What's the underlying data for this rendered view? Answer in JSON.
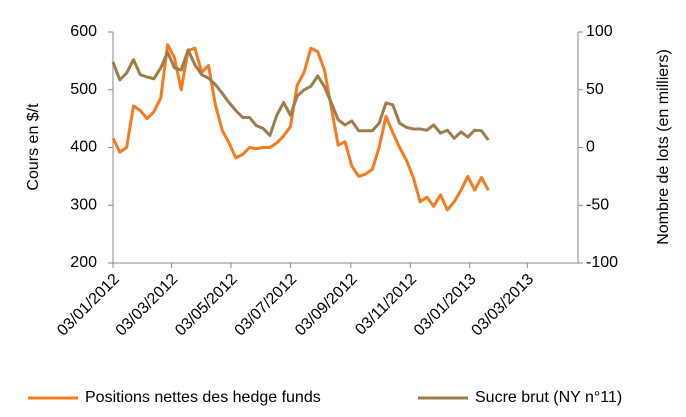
{
  "chart_data": {
    "type": "line",
    "y_label": "Cours en $/t",
    "y2_label": "Nombre de lots (en milliers)",
    "x": [
      "03/01/2012",
      "10/01/2012",
      "17/01/2012",
      "24/01/2012",
      "31/01/2012",
      "07/02/2012",
      "14/02/2012",
      "21/02/2012",
      "28/02/2012",
      "06/03/2012",
      "13/03/2012",
      "20/03/2012",
      "27/03/2012",
      "03/04/2012",
      "10/04/2012",
      "17/04/2012",
      "24/04/2012",
      "01/05/2012",
      "08/05/2012",
      "15/05/2012",
      "22/05/2012",
      "29/05/2012",
      "05/06/2012",
      "12/06/2012",
      "19/06/2012",
      "26/06/2012",
      "03/07/2012",
      "10/07/2012",
      "17/07/2012",
      "24/07/2012",
      "31/07/2012",
      "07/08/2012",
      "14/08/2012",
      "21/08/2012",
      "28/08/2012",
      "04/09/2012",
      "11/09/2012",
      "18/09/2012",
      "25/09/2012",
      "02/10/2012",
      "09/10/2012",
      "16/10/2012",
      "23/10/2012",
      "30/10/2012",
      "06/11/2012",
      "13/11/2012",
      "20/11/2012",
      "27/11/2012",
      "04/12/2012",
      "11/12/2012",
      "18/12/2012",
      "25/12/2012",
      "01/01/2013",
      "08/01/2013",
      "15/01/2013",
      "22/01/2013"
    ],
    "xlim": [
      "03/01/2012",
      "24/04/2013"
    ],
    "xticks": [
      "03/01/2012",
      "03/03/2012",
      "03/05/2012",
      "03/07/2012",
      "03/09/2012",
      "03/11/2012",
      "03/01/2013",
      "03/03/2013"
    ],
    "ylim": [
      200,
      600
    ],
    "yticks": [
      200,
      300,
      400,
      500,
      600
    ],
    "y2lim": [
      -100,
      100
    ],
    "y2ticks": [
      -100,
      -50,
      0,
      50,
      100
    ],
    "legend": "bottom",
    "series": [
      {
        "name": "Positions nettes des hedge funds",
        "color": "#f47b20",
        "axis": "y2",
        "values": [
          8,
          -4,
          0,
          36,
          32,
          25,
          31,
          43,
          89,
          78,
          50,
          84,
          86,
          65,
          71,
          37,
          15,
          4,
          -9,
          -6,
          0,
          -1,
          0,
          0,
          4,
          10,
          18,
          54,
          65,
          86,
          83,
          67,
          34,
          2,
          5,
          -16,
          -25,
          -23,
          -19,
          0,
          27,
          13,
          0,
          -11,
          -26,
          -47,
          -43,
          -51,
          -41,
          -54,
          -47,
          -37,
          -25,
          -37,
          -26,
          -37
        ]
      },
      {
        "name": "Sucre brut (NY n°11)",
        "color": "#9c7d4b",
        "values": [
          548,
          517,
          529,
          552,
          526,
          522,
          519,
          538,
          565,
          538,
          534,
          569,
          543,
          526,
          520,
          509,
          494,
          478,
          464,
          452,
          452,
          438,
          433,
          421,
          456,
          478,
          456,
          489,
          500,
          506,
          524,
          505,
          477,
          448,
          439,
          446,
          429,
          429,
          429,
          442,
          477,
          474,
          442,
          435,
          432,
          432,
          430,
          439,
          425,
          430,
          416,
          427,
          418,
          430,
          429,
          413
        ]
      }
    ]
  }
}
